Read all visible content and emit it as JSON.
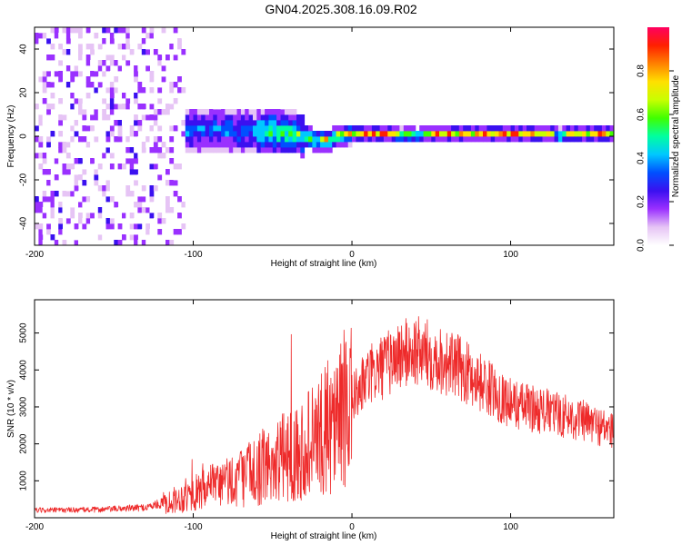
{
  "title": "GN04.2025.308.16.09.R02",
  "chart_data": [
    {
      "type": "heatmap",
      "xlabel": "Height of straight line (km)",
      "ylabel": "Frequency (Hz)",
      "xlim": [
        -200,
        165
      ],
      "ylim": [
        -50,
        50
      ],
      "x_ticks": [
        -200,
        -100,
        0,
        100
      ],
      "y_ticks": [
        -40,
        -20,
        0,
        20,
        40
      ],
      "colorbar": {
        "label": "Normalized spectral amplitude",
        "range": [
          0,
          1
        ],
        "ticks": [
          "0.0",
          "0.2",
          "0.4",
          "0.6",
          "0.8"
        ],
        "colors": [
          "#ffffff",
          "#e6c4f5",
          "#9a30ff",
          "#3a10f0",
          "#0050ff",
          "#00c8ff",
          "#00ffa0",
          "#40ff00",
          "#c8ff00",
          "#ffe000",
          "#ff8000",
          "#ff2000",
          "#ff0060"
        ]
      },
      "ridge_trace": [
        [
          -110,
          1
        ],
        [
          -90,
          2
        ],
        [
          -70,
          1
        ],
        [
          -50,
          1
        ],
        [
          -35,
          0
        ],
        [
          -25,
          -3
        ],
        [
          -15,
          -3
        ],
        [
          -10,
          -1
        ],
        [
          0,
          0
        ],
        [
          20,
          0
        ],
        [
          40,
          -1
        ],
        [
          45,
          0
        ],
        [
          70,
          0
        ],
        [
          100,
          0
        ],
        [
          125,
          0
        ],
        [
          128,
          -1
        ],
        [
          140,
          0
        ],
        [
          165,
          0
        ]
      ]
    },
    {
      "type": "line",
      "xlabel": "Height of straight line (km)",
      "ylabel": "SNR (10 * v/v)",
      "xlim": [
        -200,
        165
      ],
      "ylim": [
        0,
        5900
      ],
      "x_ticks": [
        -200,
        -100,
        0,
        100
      ],
      "y_ticks": [
        1000,
        2000,
        3000,
        4000,
        5000
      ],
      "series_color": "#ee2a2a",
      "envelope": {
        "x": [
          -200,
          -160,
          -130,
          -110,
          -90,
          -70,
          -50,
          -30,
          -15,
          0,
          10,
          20,
          30,
          40,
          50,
          60,
          70,
          80,
          90,
          100,
          120,
          140,
          165
        ],
        "y": [
          200,
          220,
          280,
          500,
          800,
          1100,
          1500,
          1900,
          2400,
          3200,
          3800,
          4100,
          4400,
          4500,
          4400,
          4200,
          4000,
          3700,
          3400,
          3100,
          2900,
          2700,
          2350
        ]
      }
    }
  ]
}
